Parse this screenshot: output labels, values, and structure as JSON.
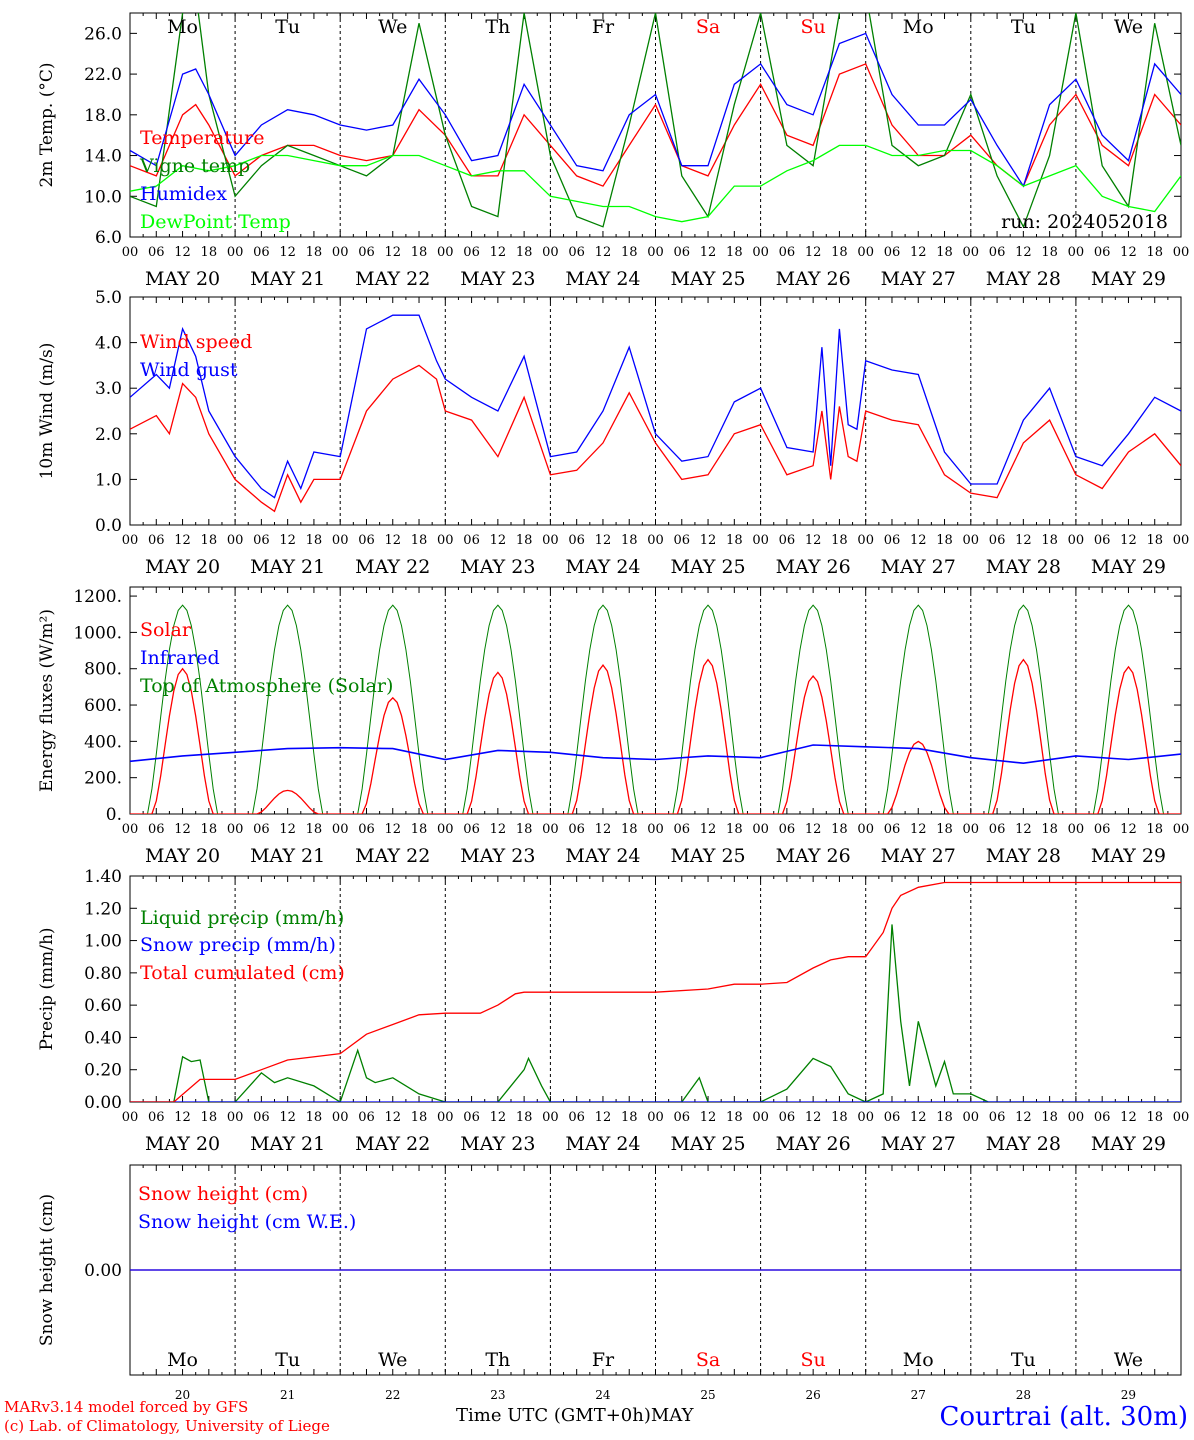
{
  "chart_data": [
    {
      "type": "line",
      "ylabel": "2m Temp. (°C)",
      "ylim": [
        6,
        28
      ],
      "yticks": [
        "6.0",
        "10.0",
        "14.0",
        "18.0",
        "22.0",
        "26.0"
      ],
      "ytick_values": [
        6,
        10,
        14,
        18,
        22,
        26
      ],
      "x_unit": "hour from MAY 20 00 UTC",
      "legend": [
        "Temperature",
        "Vigne temp",
        "Humidex",
        "DewPoint Temp"
      ],
      "run_label": "run: 2024052018",
      "series": [
        {
          "name": "Temperature",
          "color": "#ff0000",
          "x": [
            0,
            6,
            12,
            15,
            18,
            24,
            30,
            36,
            42,
            48,
            54,
            60,
            66,
            72,
            78,
            84,
            90,
            96,
            102,
            108,
            114,
            120,
            126,
            132,
            138,
            144,
            150,
            156,
            162,
            168,
            174,
            180,
            186,
            192,
            198,
            204,
            210,
            216,
            222,
            228,
            234,
            240
          ],
          "y": [
            13,
            12,
            18,
            19,
            17,
            12,
            14,
            15,
            15,
            14,
            13.5,
            14,
            18.5,
            16,
            12,
            12,
            18,
            15,
            12,
            11,
            15,
            19,
            13,
            12,
            17,
            21,
            16,
            15,
            22,
            23,
            17,
            14,
            14,
            16,
            13,
            11,
            17,
            20,
            15,
            13,
            20,
            17
          ]
        },
        {
          "name": "Vigne temp",
          "color": "#008000",
          "x": [
            0,
            6,
            12,
            15,
            18,
            24,
            30,
            36,
            42,
            48,
            54,
            60,
            66,
            72,
            78,
            84,
            90,
            96,
            102,
            108,
            114,
            120,
            126,
            132,
            138,
            144,
            150,
            156,
            162,
            168,
            174,
            180,
            186,
            192,
            198,
            204,
            210,
            216,
            222,
            228,
            234,
            240
          ],
          "y": [
            10,
            9,
            28,
            30,
            20,
            10,
            13,
            15,
            14,
            13,
            12,
            14,
            27,
            16,
            9,
            8,
            28,
            14,
            8,
            7,
            17,
            28,
            12,
            8,
            19,
            28,
            15,
            13,
            28,
            30,
            15,
            13,
            14,
            20,
            12,
            7,
            14,
            28,
            13,
            9,
            27,
            15
          ]
        },
        {
          "name": "Humidex",
          "color": "#0000ff",
          "x": [
            0,
            6,
            12,
            15,
            18,
            24,
            30,
            36,
            42,
            48,
            54,
            60,
            66,
            72,
            78,
            84,
            90,
            96,
            102,
            108,
            114,
            120,
            126,
            132,
            138,
            144,
            150,
            156,
            162,
            168,
            174,
            180,
            186,
            192,
            198,
            204,
            210,
            216,
            222,
            228,
            234,
            240
          ],
          "y": [
            14.5,
            13,
            22,
            22.5,
            20,
            14,
            17,
            18.5,
            18,
            17,
            16.5,
            17,
            21.5,
            18,
            13.5,
            14,
            21,
            17,
            13,
            12.5,
            18,
            20,
            13,
            13,
            21,
            23,
            19,
            18,
            25,
            26,
            20,
            17,
            17,
            19.5,
            15,
            11,
            19,
            21.5,
            16,
            13.5,
            23,
            20
          ]
        },
        {
          "name": "DewPoint Temp",
          "color": "#00ff00",
          "x": [
            0,
            6,
            12,
            18,
            24,
            30,
            36,
            42,
            48,
            54,
            60,
            66,
            72,
            78,
            84,
            90,
            96,
            102,
            108,
            114,
            120,
            126,
            132,
            138,
            144,
            150,
            156,
            162,
            168,
            174,
            180,
            186,
            192,
            198,
            204,
            210,
            216,
            222,
            228,
            234,
            240
          ],
          "y": [
            10.5,
            11,
            13,
            12.5,
            13,
            14,
            14,
            13.5,
            13,
            13,
            14,
            14,
            13,
            12,
            12.5,
            12.5,
            10,
            9.5,
            9,
            9,
            8,
            7.5,
            8,
            11,
            11,
            12.5,
            13.5,
            15,
            15,
            14,
            14,
            14.5,
            14.5,
            13,
            11,
            12,
            13,
            10,
            9,
            8.5,
            12
          ]
        }
      ]
    },
    {
      "type": "line",
      "ylabel": "10m Wind (m/s)",
      "ylim": [
        0,
        5
      ],
      "yticks": [
        "0.0",
        "1.0",
        "2.0",
        "3.0",
        "4.0",
        "5.0"
      ],
      "ytick_values": [
        0,
        1,
        2,
        3,
        4,
        5
      ],
      "x_unit": "hour from MAY 20 00 UTC",
      "legend": [
        "Wind speed",
        "Wind gust"
      ],
      "series": [
        {
          "name": "Wind speed",
          "color": "#ff0000",
          "x": [
            0,
            6,
            9,
            12,
            15,
            18,
            24,
            30,
            33,
            36,
            39,
            42,
            48,
            54,
            60,
            66,
            70,
            72,
            78,
            84,
            90,
            96,
            102,
            108,
            114,
            120,
            126,
            132,
            138,
            144,
            150,
            156,
            158,
            160,
            162,
            164,
            166,
            168,
            174,
            180,
            186,
            192,
            198,
            204,
            210,
            216,
            222,
            228,
            234,
            240
          ],
          "y": [
            2.1,
            2.4,
            2.0,
            3.1,
            2.8,
            2.0,
            1.0,
            0.5,
            0.3,
            1.1,
            0.5,
            1.0,
            1.0,
            2.5,
            3.2,
            3.5,
            3.2,
            2.5,
            2.3,
            1.5,
            2.8,
            1.1,
            1.2,
            1.8,
            2.9,
            1.8,
            1.0,
            1.1,
            2.0,
            2.2,
            1.1,
            1.3,
            2.5,
            1.0,
            2.6,
            1.5,
            1.4,
            2.5,
            2.3,
            2.2,
            1.1,
            0.7,
            0.6,
            1.8,
            2.3,
            1.1,
            0.8,
            1.6,
            2.0,
            1.3
          ]
        },
        {
          "name": "Wind gust",
          "color": "#0000ff",
          "x": [
            0,
            6,
            9,
            12,
            15,
            18,
            24,
            30,
            33,
            36,
            39,
            42,
            48,
            54,
            60,
            66,
            70,
            72,
            78,
            84,
            90,
            96,
            102,
            108,
            114,
            120,
            126,
            132,
            138,
            144,
            150,
            156,
            158,
            160,
            162,
            164,
            166,
            168,
            174,
            180,
            186,
            192,
            198,
            204,
            210,
            216,
            222,
            228,
            234,
            240
          ],
          "y": [
            2.8,
            3.3,
            3.0,
            4.3,
            3.7,
            2.5,
            1.5,
            0.8,
            0.6,
            1.4,
            0.8,
            1.6,
            1.5,
            4.3,
            4.6,
            4.6,
            3.6,
            3.2,
            2.8,
            2.5,
            3.7,
            1.5,
            1.6,
            2.5,
            3.9,
            2.0,
            1.4,
            1.5,
            2.7,
            3.0,
            1.7,
            1.6,
            3.9,
            1.3,
            4.3,
            2.2,
            2.1,
            3.6,
            3.4,
            3.3,
            1.6,
            0.9,
            0.9,
            2.3,
            3.0,
            1.5,
            1.3,
            2.0,
            2.8,
            2.5
          ]
        }
      ]
    },
    {
      "type": "line",
      "ylabel": "Energy fluxes (W/m²)",
      "ylim": [
        0,
        1250
      ],
      "yticks": [
        "0.",
        "200.",
        "400.",
        "600.",
        "800.",
        "1000.",
        "1200."
      ],
      "ytick_values": [
        0,
        200,
        400,
        600,
        800,
        1000,
        1200
      ],
      "x_unit": "hour from MAY 20 00 UTC",
      "legend": [
        "Solar",
        "Infrared",
        "Top of Atmosphere (Solar)"
      ],
      "toa_peak": 1150,
      "solar_daily_peaks": [
        800,
        130,
        640,
        780,
        820,
        850,
        760,
        400,
        850,
        810
      ],
      "infrared": {
        "x": [
          0,
          12,
          24,
          36,
          48,
          60,
          72,
          84,
          96,
          108,
          120,
          132,
          144,
          156,
          168,
          180,
          192,
          204,
          216,
          228,
          240
        ],
        "y": [
          290,
          320,
          340,
          360,
          365,
          360,
          300,
          350,
          340,
          310,
          300,
          320,
          310,
          380,
          370,
          360,
          310,
          280,
          320,
          300,
          330
        ]
      },
      "series": [
        {
          "name": "Solar",
          "color": "#ff0000"
        },
        {
          "name": "Infrared",
          "color": "#0000ff"
        },
        {
          "name": "Top of Atmosphere (Solar)",
          "color": "#008000"
        }
      ]
    },
    {
      "type": "line",
      "ylabel": "Precip (mm/h)",
      "ylim": [
        0,
        1.4
      ],
      "yticks": [
        "0.00",
        "0.20",
        "0.40",
        "0.60",
        "0.80",
        "1.00",
        "1.20",
        "1.40"
      ],
      "ytick_values": [
        0,
        0.2,
        0.4,
        0.6,
        0.8,
        1.0,
        1.2,
        1.4
      ],
      "x_unit": "hour from MAY 20 00 UTC",
      "legend": [
        "Liquid precip (mm/h)",
        "Snow precip (mm/h)",
        "Total cumulated (cm)"
      ],
      "series": [
        {
          "name": "Liquid precip (mm/h)",
          "color": "#008000",
          "x": [
            0,
            10,
            12,
            14,
            16,
            18,
            24,
            30,
            33,
            36,
            42,
            48,
            52,
            54,
            56,
            60,
            66,
            72,
            84,
            90,
            91,
            94,
            96,
            108,
            126,
            130,
            132,
            144,
            150,
            156,
            160,
            164,
            168,
            172,
            174,
            176,
            178,
            180,
            184,
            186,
            188,
            192,
            196,
            204,
            240
          ],
          "y": [
            0,
            0,
            0.28,
            0.25,
            0.26,
            0,
            0,
            0.18,
            0.12,
            0.15,
            0.1,
            0,
            0.32,
            0.15,
            0.12,
            0.15,
            0.05,
            0,
            0,
            0.2,
            0.27,
            0.1,
            0,
            0,
            0,
            0.15,
            0,
            0,
            0.08,
            0.27,
            0.22,
            0.05,
            0,
            0.05,
            1.1,
            0.5,
            0.1,
            0.5,
            0.1,
            0.25,
            0.05,
            0.05,
            0,
            0,
            0
          ]
        },
        {
          "name": "Snow precip (mm/h)",
          "color": "#0000ff",
          "x": [
            0,
            240
          ],
          "y": [
            0,
            0
          ]
        },
        {
          "name": "Total cumulated (cm)",
          "color": "#ff0000",
          "x": [
            0,
            10,
            16,
            24,
            30,
            36,
            48,
            54,
            60,
            66,
            72,
            80,
            84,
            88,
            90,
            96,
            108,
            120,
            132,
            138,
            144,
            150,
            156,
            160,
            164,
            168,
            172,
            174,
            176,
            180,
            186,
            190,
            240
          ],
          "y": [
            0,
            0,
            0.14,
            0.14,
            0.2,
            0.26,
            0.3,
            0.42,
            0.48,
            0.54,
            0.55,
            0.55,
            0.6,
            0.67,
            0.68,
            0.68,
            0.68,
            0.68,
            0.7,
            0.73,
            0.73,
            0.74,
            0.83,
            0.88,
            0.9,
            0.9,
            1.05,
            1.2,
            1.28,
            1.33,
            1.36,
            1.36,
            1.36
          ]
        }
      ]
    },
    {
      "type": "line",
      "ylabel": "Snow height (cm)",
      "ylim": [
        -1,
        1
      ],
      "yticks": [
        "0.00"
      ],
      "ytick_values": [
        0
      ],
      "x_unit": "hour from MAY 20 00 UTC",
      "legend": [
        "Snow height (cm)",
        "Snow height (cm W.E.)"
      ],
      "series": [
        {
          "name": "Snow height (cm)",
          "color": "#ff0000",
          "x": [
            0,
            240
          ],
          "y": [
            0,
            0
          ]
        },
        {
          "name": "Snow height (cm W.E.)",
          "color": "#0000ff",
          "x": [
            0,
            240
          ],
          "y": [
            0,
            0
          ]
        }
      ]
    }
  ],
  "day_abbrev": [
    "Mo",
    "Tu",
    "We",
    "Th",
    "Fr",
    "Sa",
    "Su",
    "Mo",
    "Tu",
    "We"
  ],
  "weekend_flags": [
    false,
    false,
    false,
    false,
    false,
    true,
    true,
    false,
    false,
    false
  ],
  "date_labels": [
    "MAY 20",
    "MAY 21",
    "MAY 22",
    "MAY 23",
    "MAY 24",
    "MAY 25",
    "MAY 26",
    "MAY 27",
    "MAY 28",
    "MAY 29"
  ],
  "day_numbers": [
    "20",
    "21",
    "22",
    "23",
    "24",
    "25",
    "26",
    "27",
    "28",
    "29"
  ],
  "hour_ticks": [
    "00",
    "06",
    "12",
    "18"
  ],
  "final_hour": "00",
  "x_axis_title": "Time UTC (GMT+0h)",
  "month_label": "MAY",
  "credit_line1": "MARv3.14 model forced by GFS",
  "credit_line2": "(c) Lab. of Climatology, University of Liege",
  "location": "Courtrai (alt. 30m)",
  "colors": {
    "weekend": "#ff0000",
    "text": "#000000",
    "location": "#0000ff"
  }
}
